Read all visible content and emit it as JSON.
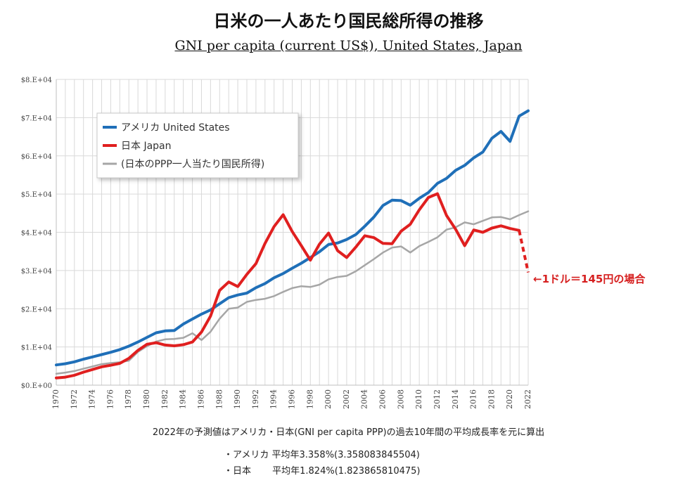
{
  "title": "日米の一人あたり国民総所得の推移",
  "subtitle": "GNI per capita (current US$), United States, Japan",
  "footnote": "2022年の予測値はアメリカ・日本(GNI per capita PPP)の過去10年間の平均成長率を元に算出",
  "growth_us": "・アメリカ 平均年3.358%(3.358083845504)",
  "growth_jp": "・日本　　 平均年1.824%(1.823865810475)",
  "annotation": "←1ドル＝145円の場合",
  "colors": {
    "us": "#1f6fb8",
    "jp": "#e01f1f",
    "ppp": "#a6a6a6",
    "grid": "#d9d9d9",
    "axis": "#bfbfbf"
  },
  "chart_data": {
    "type": "line",
    "title": "日米の一人あたり国民総所得の推移",
    "subtitle": "GNI per capita (current US$), United States, Japan",
    "xlim": [
      1970,
      2022
    ],
    "ylim": [
      0,
      80000
    ],
    "y_ticks": [
      0,
      10000,
      20000,
      30000,
      40000,
      50000,
      60000,
      70000,
      80000
    ],
    "y_tick_labels": [
      "$0.E+00",
      "$1.E+04",
      "$2.E+04",
      "$3.E+04",
      "$4.E+04",
      "$5.E+04",
      "$6.E+04",
      "$7.E+04",
      "$8.E+04"
    ],
    "x_ticks": [
      1970,
      1972,
      1974,
      1976,
      1978,
      1980,
      1982,
      1984,
      1986,
      1988,
      1990,
      1992,
      1994,
      1996,
      1998,
      2000,
      2002,
      2004,
      2006,
      2008,
      2010,
      2012,
      2014,
      2016,
      2018,
      2020,
      2022
    ],
    "grid": true,
    "legend_position": "top-left",
    "series": [
      {
        "name": "アメリカ United States",
        "color": "#1f6fb8",
        "x": [
          1970,
          1971,
          1972,
          1973,
          1974,
          1975,
          1976,
          1977,
          1978,
          1979,
          1980,
          1981,
          1982,
          1983,
          1984,
          1985,
          1986,
          1987,
          1988,
          1989,
          1990,
          1991,
          1992,
          1993,
          1994,
          1995,
          1996,
          1997,
          1998,
          1999,
          2000,
          2001,
          2002,
          2003,
          2004,
          2005,
          2006,
          2007,
          2008,
          2009,
          2010,
          2011,
          2012,
          2013,
          2014,
          2015,
          2016,
          2017,
          2018,
          2019,
          2020,
          2021,
          2022
        ],
        "y": [
          5300,
          5600,
          6100,
          6800,
          7400,
          8000,
          8600,
          9300,
          10200,
          11300,
          12500,
          13700,
          14200,
          14300,
          16000,
          17300,
          18600,
          19700,
          21300,
          22900,
          23600,
          24100,
          25500,
          26600,
          28100,
          29200,
          30600,
          31900,
          33400,
          34900,
          36800,
          37200,
          38100,
          39400,
          41600,
          44000,
          47000,
          48400,
          48300,
          47100,
          48900,
          50400,
          52800,
          54100,
          56200,
          57500,
          59500,
          61000,
          64600,
          66400,
          63800,
          70400,
          71800
        ]
      },
      {
        "name": "日本 Japan",
        "color": "#e01f1f",
        "x": [
          1970,
          1971,
          1972,
          1973,
          1974,
          1975,
          1976,
          1977,
          1978,
          1979,
          1980,
          1981,
          1982,
          1983,
          1984,
          1985,
          1986,
          1987,
          1988,
          1989,
          1990,
          1991,
          1992,
          1993,
          1994,
          1995,
          1996,
          1997,
          1998,
          1999,
          2000,
          2001,
          2002,
          2003,
          2004,
          2005,
          2006,
          2007,
          2008,
          2009,
          2010,
          2011,
          2012,
          2013,
          2014,
          2015,
          2016,
          2017,
          2018,
          2019,
          2020,
          2021
        ],
        "y": [
          1900,
          2100,
          2600,
          3400,
          4100,
          4800,
          5200,
          5700,
          7000,
          9100,
          10700,
          11100,
          10500,
          10300,
          10600,
          11300,
          13900,
          18100,
          24800,
          27000,
          25800,
          29000,
          31800,
          37100,
          41500,
          44600,
          40200,
          36500,
          32700,
          36900,
          39800,
          35200,
          33400,
          36100,
          39100,
          38600,
          37100,
          37000,
          40300,
          42100,
          45900,
          49100,
          50100,
          44400,
          40800,
          36500,
          40600,
          40000,
          41100,
          41700,
          41000,
          40500
        ]
      },
      {
        "name": "日本 Japan（1ドル＝145円の場合）",
        "color": "#e01f1f",
        "dashed": true,
        "x": [
          2021,
          2022
        ],
        "y": [
          40500,
          29500
        ]
      },
      {
        "name": "(日本のPPP一人当たり国民所得)",
        "color": "#a6a6a6",
        "x": [
          1970,
          1971,
          1972,
          1973,
          1974,
          1975,
          1976,
          1977,
          1978,
          1979,
          1980,
          1981,
          1982,
          1983,
          1984,
          1985,
          1986,
          1987,
          1988,
          1989,
          1990,
          1991,
          1992,
          1993,
          1994,
          1995,
          1996,
          1997,
          1998,
          1999,
          2000,
          2001,
          2002,
          2003,
          2004,
          2005,
          2006,
          2007,
          2008,
          2009,
          2010,
          2011,
          2012,
          2013,
          2014,
          2015,
          2016,
          2017,
          2018,
          2019,
          2020,
          2021,
          2022
        ],
        "y": [
          3000,
          3300,
          3700,
          4300,
          4900,
          5500,
          5800,
          6000,
          6400,
          8700,
          10200,
          11400,
          12000,
          12100,
          12400,
          13600,
          11800,
          14000,
          17400,
          20000,
          20300,
          21800,
          22300,
          22600,
          23300,
          24400,
          25400,
          25900,
          25700,
          26300,
          27700,
          28300,
          28600,
          29800,
          31400,
          33000,
          34700,
          36000,
          36300,
          34700,
          36400,
          37500,
          38700,
          40700,
          41300,
          42600,
          42100,
          43000,
          43900,
          44000,
          43400,
          44500,
          45500
        ]
      }
    ]
  }
}
